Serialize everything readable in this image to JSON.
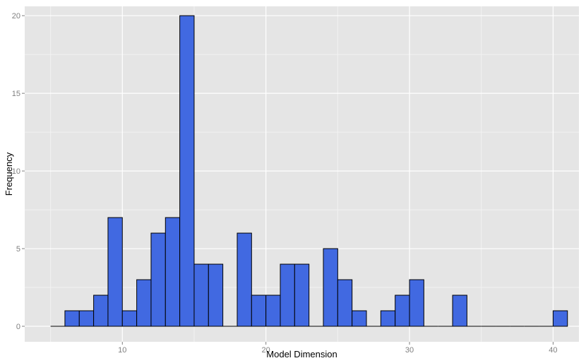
{
  "chart_data": {
    "type": "bar",
    "subtype": "histogram",
    "title": "",
    "xlabel": "Model Dimension",
    "ylabel": "Frequency",
    "xlim": [
      3.2,
      41.8
    ],
    "ylim": [
      -1,
      20.6
    ],
    "x_ticks": [
      10,
      20,
      30,
      40
    ],
    "y_ticks": [
      0,
      5,
      10,
      15,
      20
    ],
    "x_tick_labels": [
      "10",
      "20",
      "30",
      "40"
    ],
    "y_tick_labels": [
      "0",
      "5",
      "10",
      "15",
      "20"
    ],
    "bin_width": 1,
    "bin_starts": [
      5,
      6,
      7,
      8,
      9,
      10,
      11,
      12,
      13,
      14,
      15,
      16,
      17,
      18,
      19,
      20,
      21,
      22,
      23,
      24,
      25,
      26,
      27,
      28,
      29,
      30,
      31,
      32,
      33,
      34,
      35,
      36,
      37,
      38,
      39,
      40
    ],
    "values": [
      0,
      1,
      1,
      2,
      7,
      1,
      3,
      6,
      7,
      20,
      4,
      4,
      0,
      6,
      2,
      2,
      4,
      4,
      0,
      5,
      3,
      1,
      0,
      1,
      2,
      3,
      0,
      0,
      2,
      0,
      0,
      0,
      0,
      0,
      0,
      1
    ],
    "grid": true,
    "legend": "none",
    "colors": {
      "bar_fill": "#4169E1",
      "bar_stroke": "#000000",
      "panel_bg": "#E5E5E5",
      "grid_major": "#FFFFFF",
      "grid_minor": "#F2F2F2",
      "tick_text": "#7F7F7F"
    }
  }
}
